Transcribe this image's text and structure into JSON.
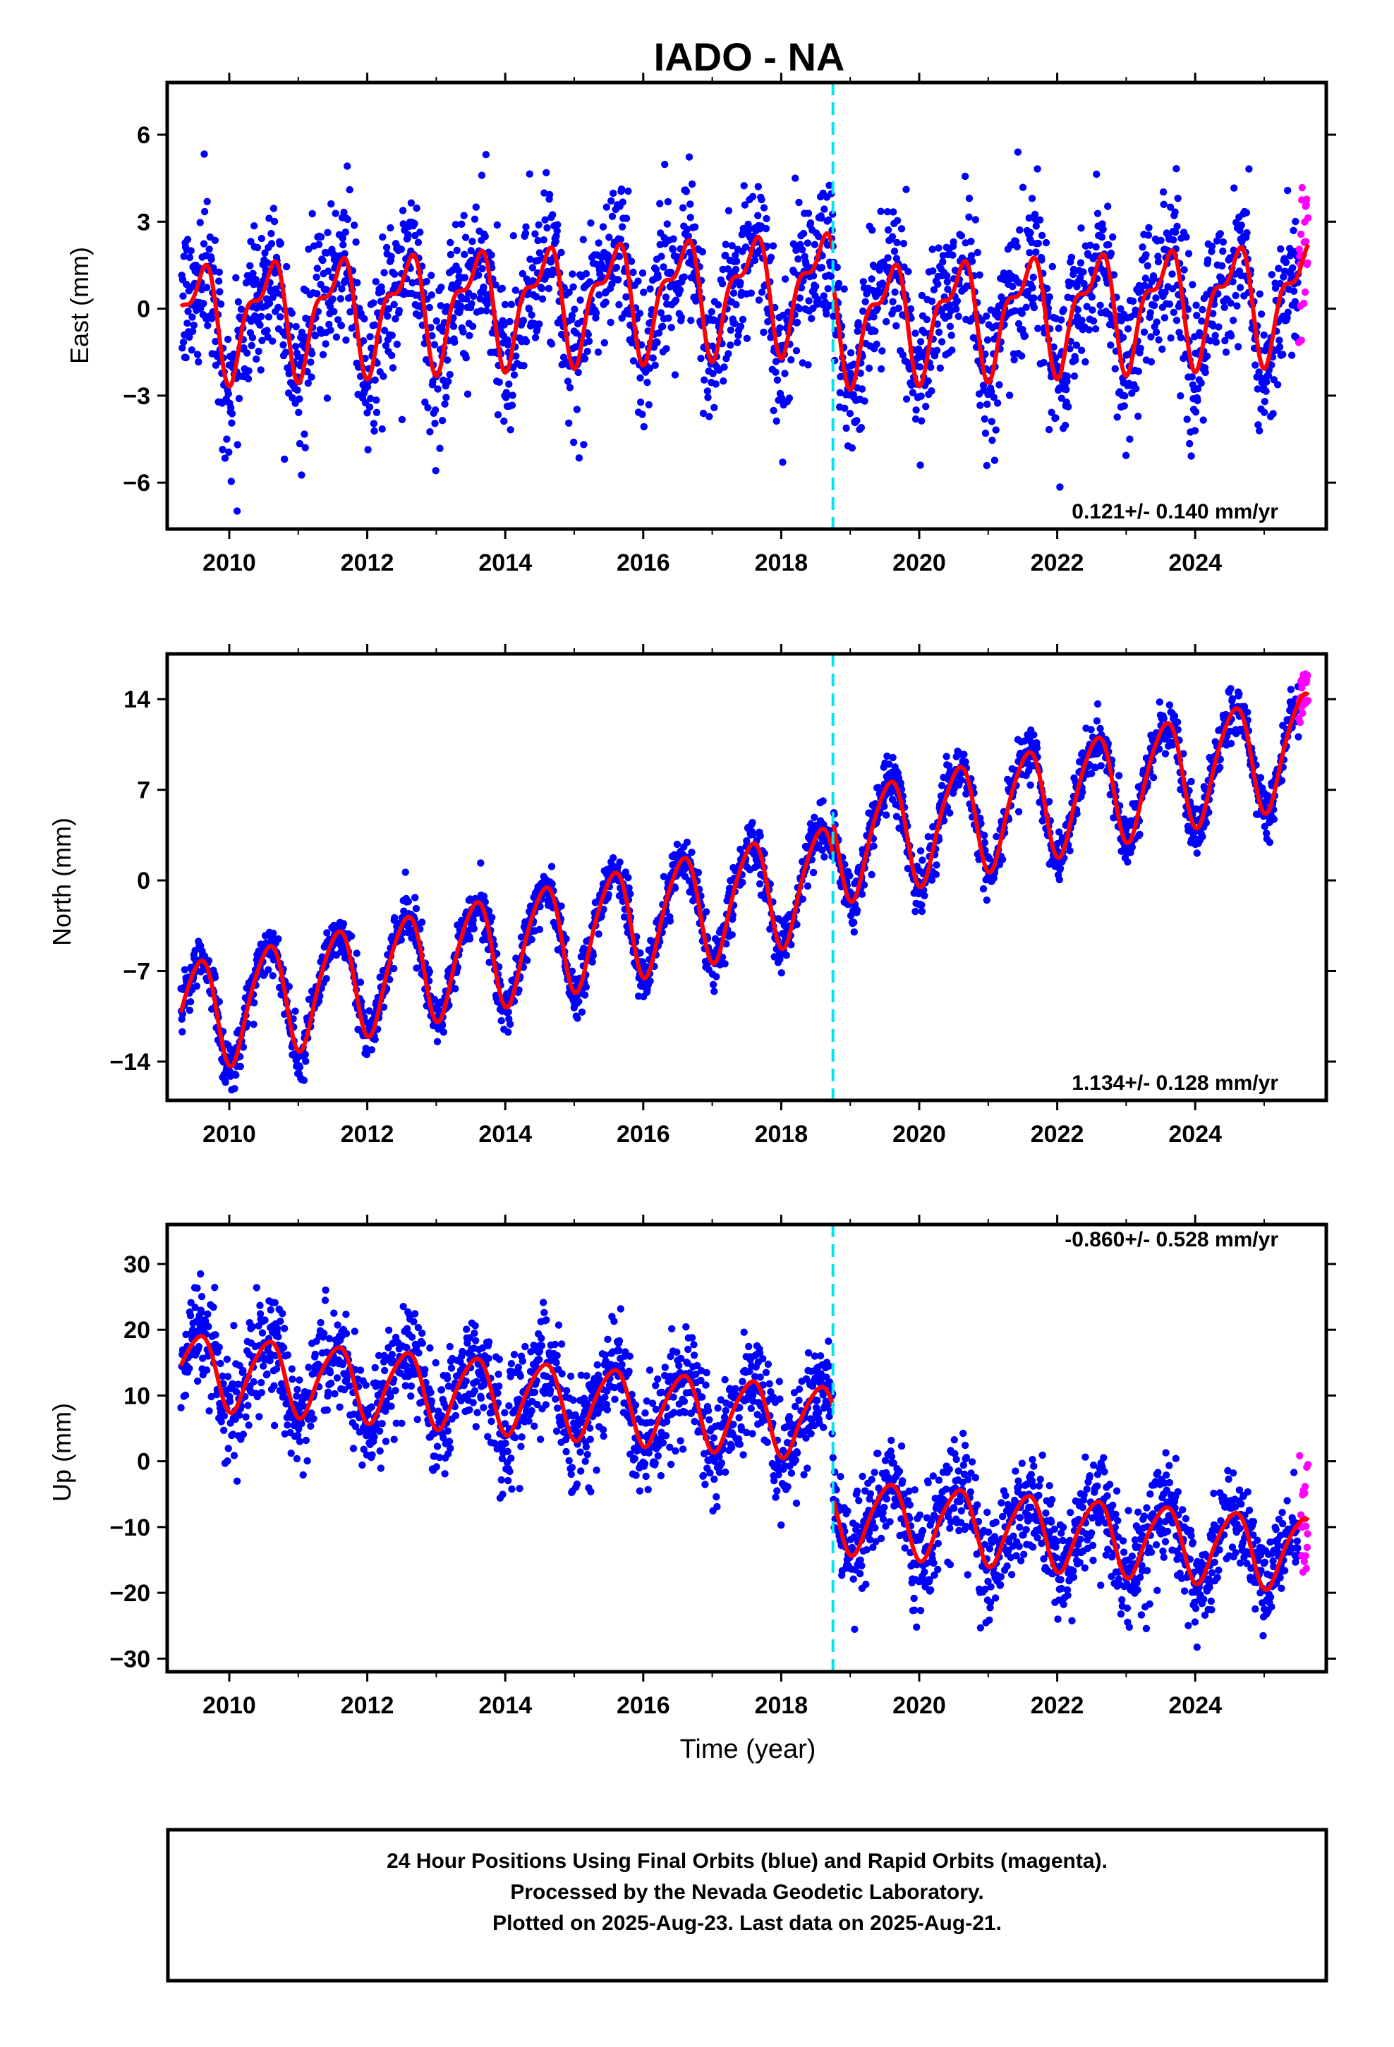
{
  "title": "IADO - NA",
  "colors": {
    "final_orbits": "#0000ff",
    "rapid_orbits": "#ff00ff",
    "model_fit": "#ff0000",
    "equipment_change": "#00e5ee",
    "frame": "#000000"
  },
  "chart_data": [
    {
      "type": "scatter",
      "panel": "east",
      "title": "",
      "xlabel": "",
      "ylabel": "East (mm)",
      "xlim": [
        2009.1,
        2025.9
      ],
      "ylim": [
        -7.6,
        7.8
      ],
      "x_ticks": [
        2010,
        2012,
        2014,
        2016,
        2018,
        2020,
        2022,
        2024
      ],
      "x_tick_labels": [
        "2010",
        "2012",
        "2014",
        "2016",
        "2018",
        "2020",
        "2022",
        "2024"
      ],
      "y_ticks": [
        -6,
        -3,
        0,
        3,
        6
      ],
      "y_tick_labels": [
        "−6",
        "−3",
        "0",
        "3",
        "6"
      ],
      "rate_label": "0.121+/- 0.140 mm/yr",
      "rate_position": "bottom-right",
      "equipment_change_year": 2018.75,
      "velocity_mm_per_yr": 0.121,
      "annual_amplitude_mm": 1.7,
      "semiannual_amplitude_mm": 0.8,
      "noise_sd_mm": 1.3,
      "offset_after_change_mm": -1.2,
      "data_start": 2009.3,
      "data_end": 2025.64,
      "rapid_start": 2025.5,
      "series": [
        {
          "name": "Final Orbits (blue)",
          "color": "#0000ff"
        },
        {
          "name": "Rapid Orbits (magenta)",
          "color": "#ff00ff"
        },
        {
          "name": "Model fit",
          "color": "#ff0000"
        }
      ]
    },
    {
      "type": "scatter",
      "panel": "north",
      "title": "",
      "xlabel": "",
      "ylabel": "North (mm)",
      "xlim": [
        2009.1,
        2025.9
      ],
      "ylim": [
        -17,
        17.5
      ],
      "x_ticks": [
        2010,
        2012,
        2014,
        2016,
        2018,
        2020,
        2022,
        2024
      ],
      "x_tick_labels": [
        "2010",
        "2012",
        "2014",
        "2016",
        "2018",
        "2020",
        "2022",
        "2024"
      ],
      "y_ticks": [
        -14,
        -7,
        0,
        7,
        14
      ],
      "y_tick_labels": [
        "−14",
        "−7",
        "0",
        "7",
        "14"
      ],
      "rate_label": "1.134+/- 0.128 mm/yr",
      "rate_position": "bottom-right",
      "equipment_change_year": 2018.75,
      "velocity_mm_per_yr": 1.134,
      "annual_amplitude_mm": 4.2,
      "semiannual_amplitude_mm": 0.6,
      "noise_sd_mm": 1.0,
      "offset_after_change_mm": 2.5,
      "data_start": 2009.3,
      "data_end": 2025.64,
      "rapid_start": 2025.5,
      "series": [
        {
          "name": "Final Orbits (blue)",
          "color": "#0000ff"
        },
        {
          "name": "Rapid Orbits (magenta)",
          "color": "#ff00ff"
        },
        {
          "name": "Model fit",
          "color": "#ff0000"
        }
      ]
    },
    {
      "type": "scatter",
      "panel": "up",
      "title": "",
      "xlabel": "Time (year)",
      "ylabel": "Up (mm)",
      "xlim": [
        2009.1,
        2025.9
      ],
      "ylim": [
        -32,
        36
      ],
      "x_ticks": [
        2010,
        2012,
        2014,
        2016,
        2018,
        2020,
        2022,
        2024
      ],
      "x_tick_labels": [
        "2010",
        "2012",
        "2014",
        "2016",
        "2018",
        "2020",
        "2022",
        "2024"
      ],
      "y_ticks": [
        -30,
        -20,
        -10,
        0,
        10,
        20,
        30
      ],
      "y_tick_labels": [
        "−30",
        "−20",
        "−10",
        "0",
        "10",
        "20",
        "30"
      ],
      "rate_label": "-0.860+/- 0.528 mm/yr",
      "rate_position": "top-right",
      "equipment_change_year": 2018.75,
      "velocity_mm_per_yr": -0.86,
      "annual_amplitude_mm": 5.5,
      "semiannual_amplitude_mm": 0.8,
      "noise_sd_mm": 4.0,
      "offset_after_change_mm": -14,
      "data_start": 2009.3,
      "data_end": 2025.64,
      "rapid_start": 2025.5,
      "series": [
        {
          "name": "Final Orbits (blue)",
          "color": "#0000ff"
        },
        {
          "name": "Rapid Orbits (magenta)",
          "color": "#ff00ff"
        },
        {
          "name": "Model fit",
          "color": "#ff0000"
        }
      ]
    }
  ],
  "caption": {
    "line1": "24 Hour Positions Using Final Orbits (blue) and Rapid Orbits (magenta).",
    "line2": "Processed by the Nevada Geodetic Laboratory.",
    "line3": "Plotted on 2025-Aug-23. Last data on 2025-Aug-21."
  }
}
